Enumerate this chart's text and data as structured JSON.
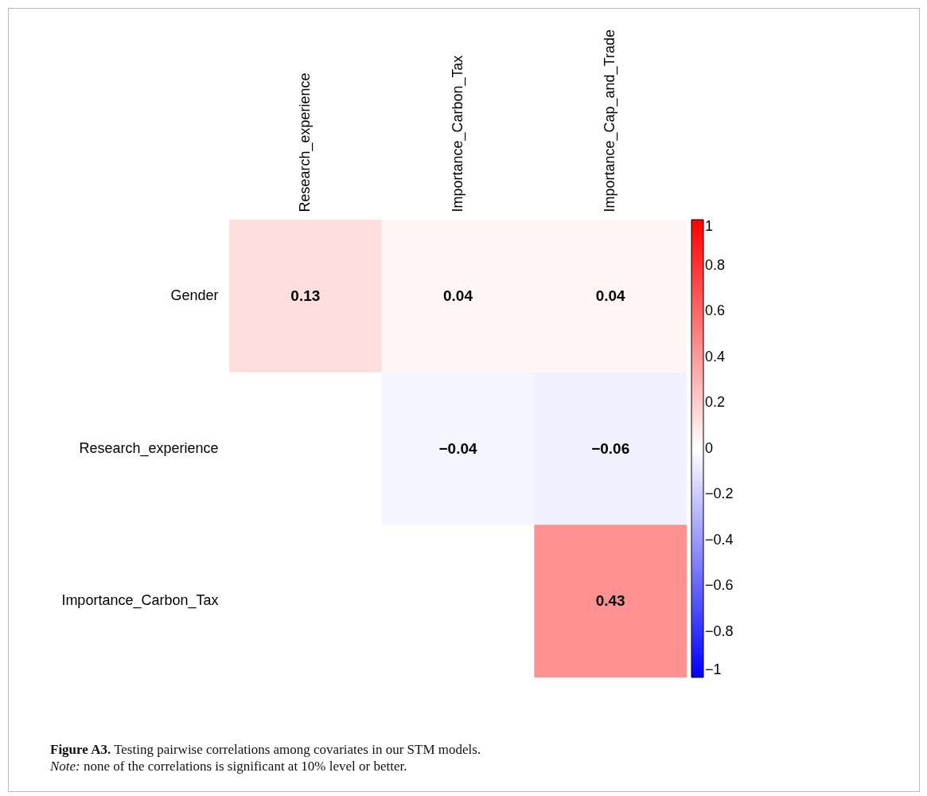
{
  "chart_data": {
    "type": "heatmap",
    "categories": [
      "Research_experience",
      "Importance_Carbon_Tax",
      "Importance_Cap_and_Trade"
    ],
    "y_categories": [
      "Gender",
      "Research_experience",
      "Importance_Carbon_Tax"
    ],
    "cells": [
      [
        0.13,
        0.04,
        0.04
      ],
      [
        null,
        -0.04,
        -0.06
      ],
      [
        null,
        null,
        0.43
      ]
    ],
    "clim": [
      -1,
      1
    ],
    "cticks": [
      -1,
      -0.8,
      -0.6,
      -0.4,
      -0.2,
      0,
      0.2,
      0.4,
      0.6,
      0.8,
      1
    ],
    "data_labels": true,
    "annotations": [
      "Figure A3. Testing pairwise correlations among covariates in our STM models.",
      "Note: none of the correlations is significant at 10% level or better."
    ]
  }
}
